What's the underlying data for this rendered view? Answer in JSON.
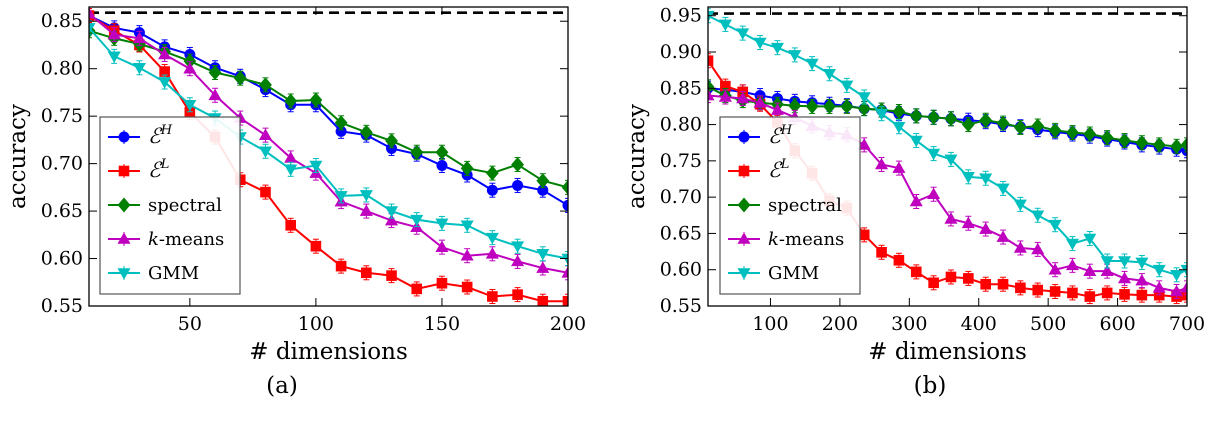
{
  "chart_data": [
    {
      "type": "line",
      "caption": "(a)",
      "xlabel": "# dimensions",
      "ylabel": "accuracy",
      "xlim": [
        10,
        200
      ],
      "ylim": [
        0.55,
        0.865
      ],
      "xticks": [
        50,
        100,
        150,
        200
      ],
      "yticks": [
        0.55,
        0.6,
        0.65,
        0.7,
        0.75,
        0.8,
        0.85
      ],
      "ytick_labels": [
        "0.55",
        "0.60",
        "0.65",
        "0.70",
        "0.75",
        "0.80",
        "0.85"
      ],
      "reference_line": 0.859,
      "legend_position": "lower-left",
      "x": [
        10,
        20,
        30,
        40,
        50,
        60,
        70,
        80,
        90,
        100,
        110,
        120,
        130,
        140,
        150,
        160,
        170,
        180,
        190,
        200
      ],
      "series": [
        {
          "name": "E^H",
          "label_base": "ℰ",
          "label_sup": "H",
          "color": "#0000ff",
          "marker": "circle",
          "values": [
            0.856,
            0.843,
            0.838,
            0.823,
            0.815,
            0.801,
            0.792,
            0.778,
            0.762,
            0.762,
            0.734,
            0.73,
            0.716,
            0.71,
            0.698,
            0.688,
            0.672,
            0.677,
            0.672,
            0.656
          ]
        },
        {
          "name": "E^L",
          "label_base": "ℰ",
          "label_sup": "L",
          "color": "#ff0000",
          "marker": "square",
          "values": [
            0.856,
            0.84,
            0.825,
            0.797,
            0.754,
            0.728,
            0.683,
            0.67,
            0.635,
            0.613,
            0.592,
            0.585,
            0.582,
            0.568,
            0.574,
            0.57,
            0.56,
            0.562,
            0.555,
            0.555
          ]
        },
        {
          "name": "spectral",
          "label_base": "spectral",
          "label_sup": "",
          "color": "#008000",
          "marker": "diamond",
          "values": [
            0.84,
            0.832,
            0.826,
            0.818,
            0.808,
            0.796,
            0.79,
            0.783,
            0.766,
            0.767,
            0.743,
            0.733,
            0.724,
            0.712,
            0.712,
            0.695,
            0.69,
            0.699,
            0.682,
            0.675
          ]
        },
        {
          "name": "k-means",
          "label_base": "k",
          "label_sup": "",
          "label_tail": "-means",
          "color": "#bf00bf",
          "marker": "triangle-up",
          "values": [
            0.858,
            0.836,
            0.832,
            0.815,
            0.8,
            0.772,
            0.748,
            0.73,
            0.706,
            0.69,
            0.66,
            0.65,
            0.64,
            0.633,
            0.612,
            0.603,
            0.605,
            0.597,
            0.59,
            0.585
          ]
        },
        {
          "name": "GMM",
          "label_base": "GMM",
          "label_sup": "",
          "color": "#00bfbf",
          "marker": "triangle-down",
          "values": [
            0.843,
            0.813,
            0.801,
            0.786,
            0.762,
            0.748,
            0.728,
            0.713,
            0.694,
            0.698,
            0.666,
            0.667,
            0.65,
            0.641,
            0.637,
            0.635,
            0.622,
            0.613,
            0.605,
            0.6
          ]
        }
      ]
    },
    {
      "type": "line",
      "caption": "(b)",
      "xlabel": "# dimensions",
      "ylabel": "accuracy",
      "xlim": [
        10,
        700
      ],
      "ylim": [
        0.55,
        0.962
      ],
      "xticks": [
        100,
        200,
        300,
        400,
        500,
        600,
        700
      ],
      "yticks": [
        0.55,
        0.6,
        0.65,
        0.7,
        0.75,
        0.8,
        0.85,
        0.9,
        0.95
      ],
      "ytick_labels": [
        "0.55",
        "0.60",
        "0.65",
        "0.70",
        "0.75",
        "0.80",
        "0.85",
        "0.90",
        "0.95"
      ],
      "reference_line": 0.953,
      "legend_position": "lower-left",
      "x": [
        10,
        35,
        60,
        85,
        110,
        135,
        160,
        185,
        210,
        235,
        260,
        285,
        310,
        335,
        360,
        385,
        410,
        435,
        460,
        485,
        510,
        535,
        560,
        585,
        610,
        635,
        660,
        685,
        700
      ],
      "series": [
        {
          "name": "E^H",
          "label_base": "ℰ",
          "label_sup": "H",
          "color": "#0000ff",
          "marker": "circle",
          "values": [
            0.85,
            0.848,
            0.845,
            0.84,
            0.836,
            0.832,
            0.83,
            0.828,
            0.826,
            0.822,
            0.82,
            0.815,
            0.812,
            0.81,
            0.808,
            0.806,
            0.804,
            0.8,
            0.797,
            0.793,
            0.79,
            0.787,
            0.784,
            0.78,
            0.776,
            0.772,
            0.769,
            0.766,
            0.764
          ]
        },
        {
          "name": "E^L",
          "label_base": "ℰ",
          "label_sup": "L",
          "color": "#ff0000",
          "marker": "square",
          "values": [
            0.888,
            0.853,
            0.845,
            0.828,
            0.803,
            0.764,
            0.733,
            0.695,
            0.685,
            0.648,
            0.624,
            0.613,
            0.597,
            0.582,
            0.59,
            0.588,
            0.58,
            0.58,
            0.575,
            0.572,
            0.57,
            0.568,
            0.563,
            0.568,
            0.566,
            0.565,
            0.565,
            0.563,
            0.565
          ]
        },
        {
          "name": "spectral",
          "label_base": "spectral",
          "label_sup": "",
          "color": "#008000",
          "marker": "diamond",
          "values": [
            0.852,
            0.84,
            0.833,
            0.83,
            0.828,
            0.826,
            0.825,
            0.825,
            0.825,
            0.822,
            0.82,
            0.818,
            0.812,
            0.81,
            0.808,
            0.8,
            0.806,
            0.802,
            0.796,
            0.798,
            0.792,
            0.789,
            0.787,
            0.782,
            0.778,
            0.775,
            0.772,
            0.77,
            0.772
          ]
        },
        {
          "name": "k-means",
          "label_base": "k",
          "label_sup": "",
          "label_tail": "-means",
          "color": "#bf00bf",
          "marker": "triangle-up",
          "values": [
            0.84,
            0.838,
            0.836,
            0.83,
            0.82,
            0.81,
            0.798,
            0.789,
            0.786,
            0.772,
            0.745,
            0.74,
            0.694,
            0.704,
            0.67,
            0.664,
            0.656,
            0.645,
            0.63,
            0.628,
            0.6,
            0.606,
            0.598,
            0.598,
            0.588,
            0.585,
            0.575,
            0.57,
            0.575
          ]
        },
        {
          "name": "GMM",
          "label_base": "GMM",
          "label_sup": "",
          "color": "#00bfbf",
          "marker": "triangle-down",
          "values": [
            0.95,
            0.938,
            0.926,
            0.913,
            0.906,
            0.896,
            0.884,
            0.87,
            0.854,
            0.838,
            0.815,
            0.797,
            0.778,
            0.76,
            0.752,
            0.728,
            0.726,
            0.712,
            0.69,
            0.675,
            0.662,
            0.636,
            0.643,
            0.612,
            0.612,
            0.61,
            0.6,
            0.593,
            0.6
          ]
        }
      ]
    }
  ]
}
